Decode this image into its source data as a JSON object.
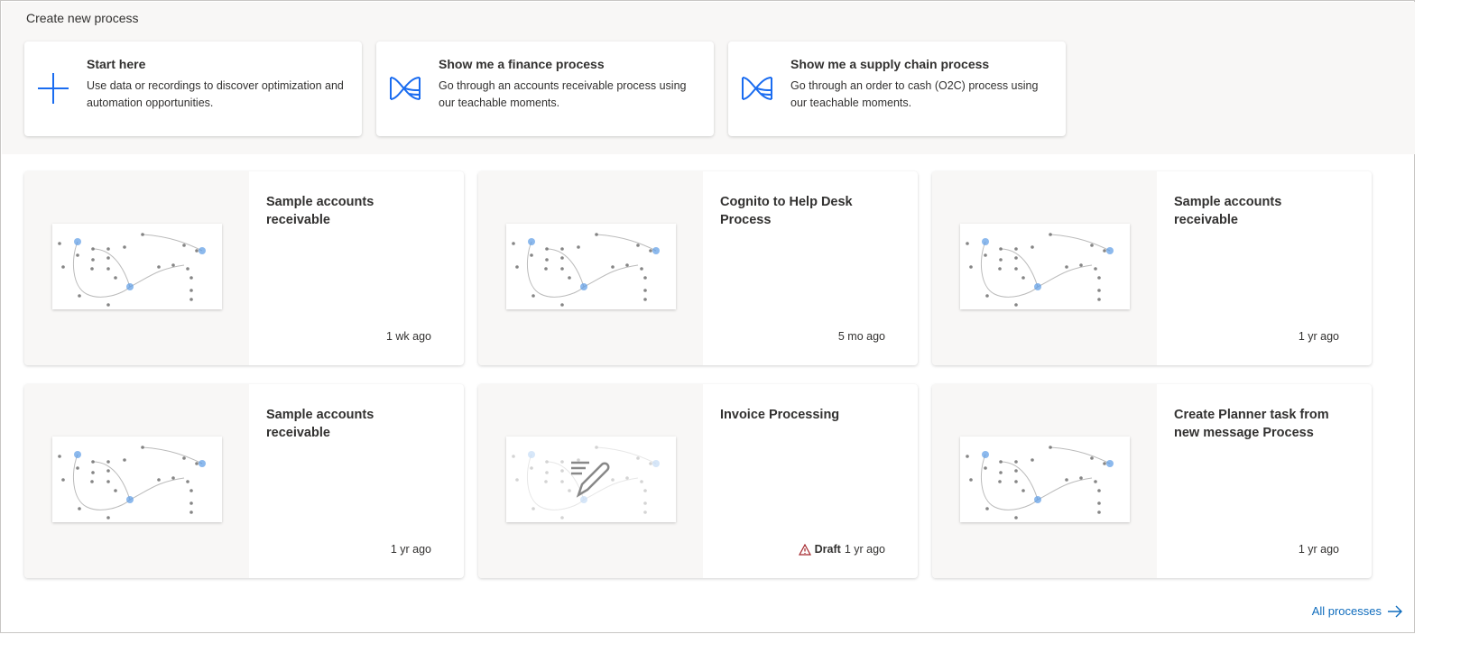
{
  "create": {
    "title": "Create new process",
    "cards": [
      {
        "title": "Start here",
        "desc": "Use data or recordings to discover optimization and automation opportunities.",
        "icon": "plus-icon"
      },
      {
        "title": "Show me a finance process",
        "desc": "Go through an accounts receivable process using our teachable moments.",
        "icon": "process-mining-icon"
      },
      {
        "title": "Show me a supply chain process",
        "desc": "Go through an order to cash (O2C) process using our teachable moments.",
        "icon": "process-mining-icon"
      }
    ]
  },
  "processes": [
    {
      "name": "Sample accounts receivable",
      "time": "1 wk ago"
    },
    {
      "name": "Cognito to Help Desk Process",
      "time": "5 mo ago"
    },
    {
      "name": "Sample accounts receivable",
      "time": "1 yr ago"
    },
    {
      "name": "Sample accounts receivable",
      "time": "1 yr ago"
    },
    {
      "name": "Invoice Processing",
      "time": "1 yr ago",
      "draft": "Draft"
    },
    {
      "name": "Create Planner task from new message Process",
      "time": "1 yr ago"
    }
  ],
  "footer": {
    "all_label": "All processes"
  },
  "colors": {
    "accent": "#0f6cbd",
    "warning": "#a4262c"
  }
}
